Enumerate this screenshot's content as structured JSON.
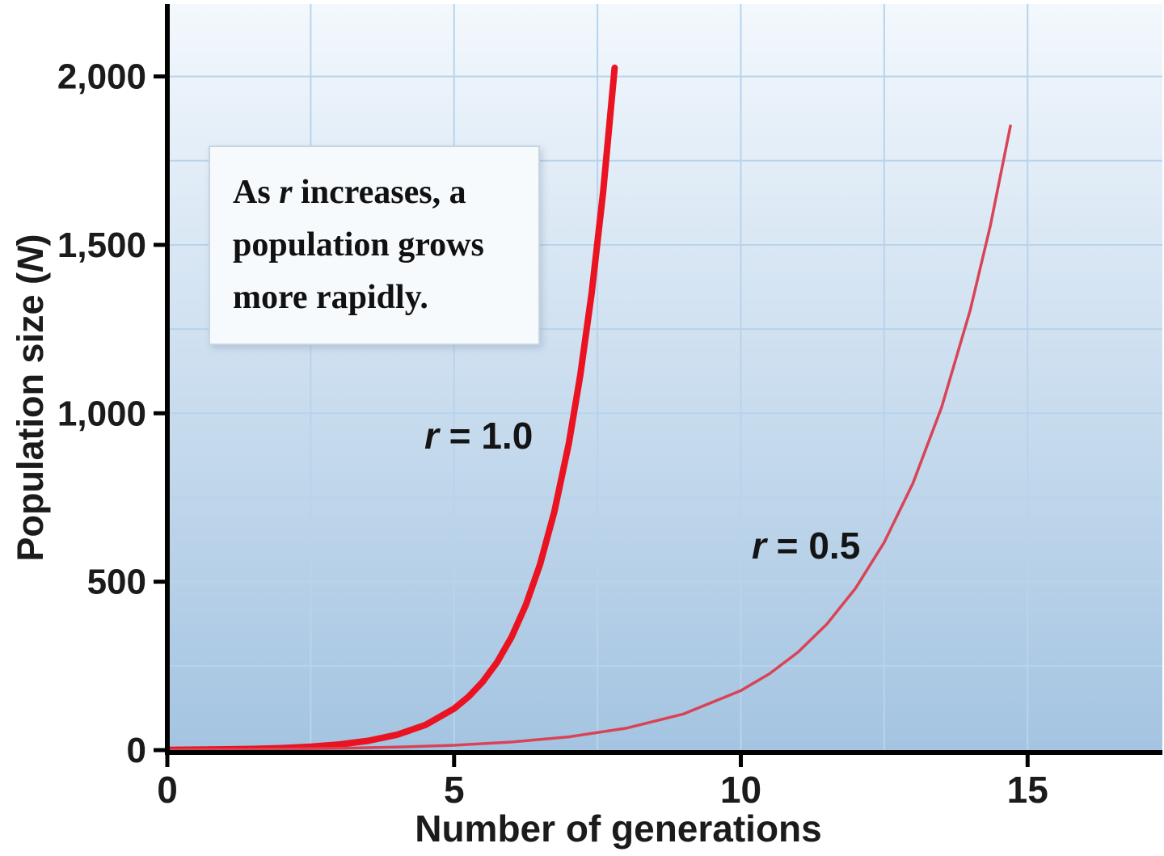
{
  "figure": {
    "y_axis": {
      "label_pre": "Population size (",
      "label_var": "N",
      "label_post": ")"
    },
    "x_axis": {
      "label": "Number of generations"
    },
    "annotation": {
      "pre": "As ",
      "var": "r",
      "post": " increases, a population grows more rapidly."
    },
    "curve_labels": {
      "r1": {
        "var": "r",
        "rest": " = 1.0"
      },
      "r05": {
        "var": "r",
        "rest": " = 0.5"
      }
    }
  },
  "chart_data": {
    "type": "line",
    "title": "",
    "xlabel": "Number of generations",
    "ylabel": "Population size (N)",
    "annotation": "As r increases, a population grows more rapidly.",
    "xlim": [
      0,
      17.35
    ],
    "ylim": [
      0,
      2215
    ],
    "xticks": [
      0,
      5,
      10,
      15
    ],
    "xtick_labels": [
      "0",
      "5",
      "10",
      "15"
    ],
    "yticks": [
      0,
      500,
      1000,
      1500,
      2000
    ],
    "ytick_labels": [
      "0",
      "500",
      "1,000",
      "1,500",
      "2,000"
    ],
    "grid": {
      "x_interval": 2.5,
      "y_interval": 250,
      "color": "#b9d3ec",
      "width": 2
    },
    "background": {
      "top": "#f3f8fd",
      "bottom": "#a4c4e1"
    },
    "axis_color": "#000000",
    "legend_position": "none",
    "series": [
      {
        "name": "r = 1.0",
        "r": 1.0,
        "color": "#ea1322",
        "width": 8,
        "x": [
          0,
          0.5,
          1,
          1.5,
          2,
          2.5,
          3,
          3.5,
          4,
          4.5,
          5,
          5.25,
          5.5,
          5.75,
          6,
          6.25,
          6.5,
          6.75,
          7,
          7.2,
          7.4,
          7.6,
          7.8
        ],
        "y": [
          0.8,
          1.4,
          2.3,
          3.7,
          6.1,
          10.1,
          16.7,
          27.5,
          45.3,
          74.7,
          123.2,
          158.2,
          203.1,
          260.8,
          334.9,
          430.0,
          552.1,
          708.9,
          910.3,
          1111.8,
          1357.9,
          1658.5,
          2025.6
        ]
      },
      {
        "name": "r = 0.5",
        "r": 0.5,
        "color": "#d84455",
        "width": 3.5,
        "x": [
          0,
          1,
          2,
          3,
          4,
          5,
          6,
          7,
          8,
          9,
          10,
          10.5,
          11,
          11.5,
          12,
          12.5,
          13,
          13.5,
          14,
          14.35,
          14.7
        ],
        "y": [
          1.2,
          2.0,
          3.2,
          5.3,
          8.8,
          14.5,
          23.9,
          39.4,
          65.0,
          107.2,
          176.6,
          226.8,
          291.3,
          374.1,
          480.4,
          616.9,
          792.2,
          1017.3,
          1306.4,
          1556.0,
          1853.0
        ]
      }
    ]
  }
}
